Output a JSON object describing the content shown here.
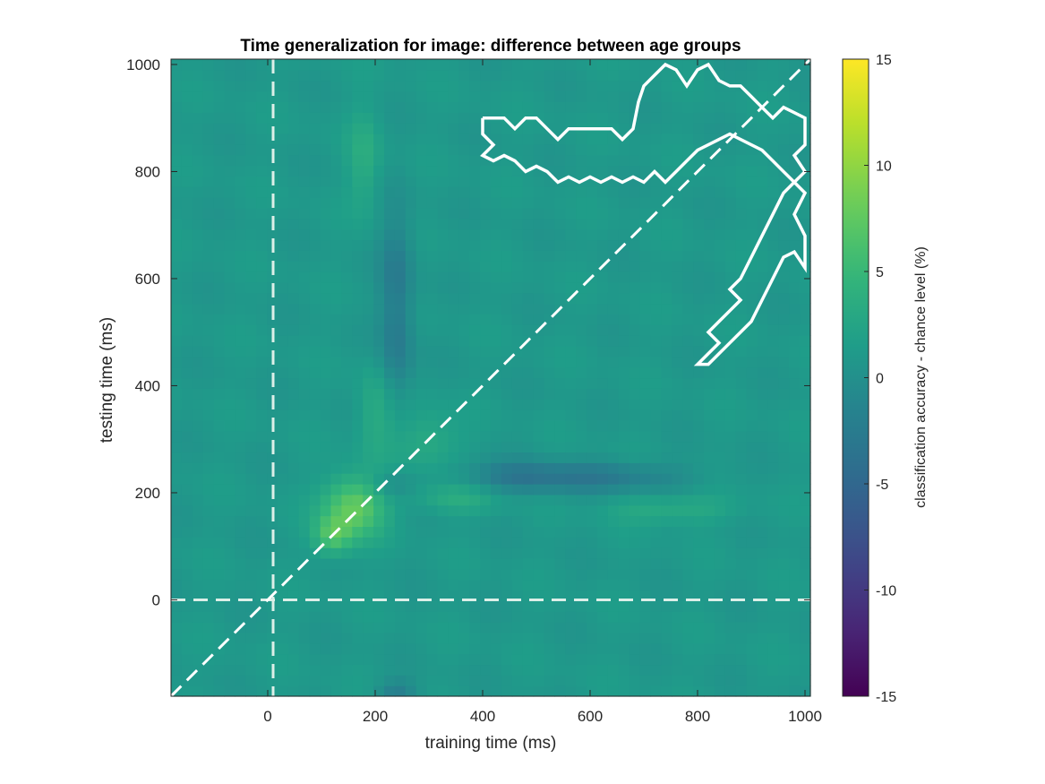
{
  "chart_data": {
    "type": "heatmap",
    "title": "Time generalization for image: difference between age groups",
    "xlabel": "training time (ms)",
    "ylabel": "testing time (ms)",
    "xlim": [
      -180,
      1010
    ],
    "ylim": [
      -180,
      1010
    ],
    "xticks": [
      0,
      200,
      400,
      600,
      800,
      1000
    ],
    "yticks": [
      0,
      200,
      400,
      600,
      800,
      1000
    ],
    "xtick_labels": [
      "0",
      "200",
      "400",
      "600",
      "800",
      "1000"
    ],
    "ytick_labels": [
      "0",
      "200",
      "400",
      "600",
      "800",
      "1000"
    ],
    "colormap": "viridis",
    "colorbar": {
      "label": "classification accuracy - chance level (%)",
      "range": [
        -15,
        15
      ],
      "ticks": [
        -15,
        -10,
        -5,
        0,
        5,
        10,
        15
      ],
      "tick_labels": [
        "-15",
        "-10",
        "-5",
        "0",
        "5",
        "10",
        "15"
      ]
    },
    "baseline_value": 1,
    "features": [
      {
        "kind": "blob",
        "x": 160,
        "y": 175,
        "sx": 40,
        "sy": 40,
        "value": 7
      },
      {
        "kind": "blob",
        "x": 120,
        "y": 120,
        "sx": 25,
        "sy": 25,
        "value": 5
      },
      {
        "kind": "blob",
        "x": 460,
        "y": 230,
        "sx": 70,
        "sy": 22,
        "value": -3
      },
      {
        "kind": "blob",
        "x": 620,
        "y": 230,
        "sx": 110,
        "sy": 20,
        "value": -3.5
      },
      {
        "kind": "blob",
        "x": 240,
        "y": 600,
        "sx": 22,
        "sy": 90,
        "value": -3.5
      },
      {
        "kind": "blob",
        "x": 240,
        "y": 450,
        "sx": 22,
        "sy": 60,
        "value": -2.5
      },
      {
        "kind": "blob",
        "x": 230,
        "y": 215,
        "sx": 30,
        "sy": 20,
        "value": -2
      },
      {
        "kind": "blob",
        "x": 180,
        "y": 820,
        "sx": 22,
        "sy": 70,
        "value": 2.5
      },
      {
        "kind": "blob",
        "x": 200,
        "y": 350,
        "sx": 25,
        "sy": 60,
        "value": 2.5
      },
      {
        "kind": "blob",
        "x": 350,
        "y": 190,
        "sx": 60,
        "sy": 20,
        "value": 2.5
      },
      {
        "kind": "blob",
        "x": 750,
        "y": 170,
        "sx": 80,
        "sy": 20,
        "value": 2.5
      },
      {
        "kind": "blob",
        "x": 300,
        "y": 300,
        "sx": 40,
        "sy": 40,
        "value": 2.5
      },
      {
        "kind": "blob",
        "x": 240,
        "y": -170,
        "sx": 25,
        "sy": 15,
        "value": -3
      }
    ],
    "reference_lines": [
      {
        "orientation": "vertical",
        "at": 10,
        "style": "dashed"
      },
      {
        "orientation": "horizontal",
        "at": 0,
        "style": "dashed"
      },
      {
        "orientation": "diagonal",
        "from": [
          -180,
          -180
        ],
        "to": [
          1010,
          1010
        ],
        "style": "dashed"
      }
    ],
    "significance_contours": [
      {
        "label": "significant cluster",
        "points": [
          [
            400,
            900
          ],
          [
            440,
            900
          ],
          [
            460,
            880
          ],
          [
            480,
            900
          ],
          [
            500,
            900
          ],
          [
            520,
            880
          ],
          [
            540,
            860
          ],
          [
            560,
            880
          ],
          [
            580,
            880
          ],
          [
            600,
            880
          ],
          [
            640,
            880
          ],
          [
            660,
            860
          ],
          [
            680,
            880
          ],
          [
            690,
            930
          ],
          [
            700,
            960
          ],
          [
            720,
            980
          ],
          [
            740,
            1000
          ],
          [
            760,
            990
          ],
          [
            780,
            960
          ],
          [
            800,
            990
          ],
          [
            820,
            1000
          ],
          [
            840,
            970
          ],
          [
            860,
            960
          ],
          [
            880,
            960
          ],
          [
            900,
            940
          ],
          [
            920,
            920
          ],
          [
            940,
            900
          ],
          [
            960,
            920
          ],
          [
            980,
            910
          ],
          [
            1000,
            900
          ],
          [
            1000,
            850
          ],
          [
            980,
            830
          ],
          [
            1000,
            800
          ],
          [
            980,
            780
          ],
          [
            1000,
            760
          ],
          [
            980,
            720
          ],
          [
            1000,
            680
          ],
          [
            1000,
            620
          ],
          [
            980,
            650
          ],
          [
            960,
            640
          ],
          [
            940,
            600
          ],
          [
            920,
            560
          ],
          [
            900,
            520
          ],
          [
            880,
            500
          ],
          [
            860,
            480
          ],
          [
            840,
            460
          ],
          [
            820,
            440
          ],
          [
            800,
            440
          ],
          [
            820,
            460
          ],
          [
            840,
            480
          ],
          [
            820,
            500
          ],
          [
            840,
            520
          ],
          [
            860,
            540
          ],
          [
            880,
            560
          ],
          [
            860,
            580
          ],
          [
            880,
            600
          ],
          [
            900,
            640
          ],
          [
            920,
            680
          ],
          [
            940,
            720
          ],
          [
            960,
            760
          ],
          [
            980,
            780
          ],
          [
            960,
            800
          ],
          [
            940,
            820
          ],
          [
            920,
            840
          ],
          [
            900,
            850
          ],
          [
            880,
            860
          ],
          [
            860,
            870
          ],
          [
            840,
            860
          ],
          [
            820,
            850
          ],
          [
            800,
            840
          ],
          [
            780,
            820
          ],
          [
            760,
            800
          ],
          [
            740,
            780
          ],
          [
            720,
            800
          ],
          [
            700,
            780
          ],
          [
            680,
            790
          ],
          [
            660,
            780
          ],
          [
            640,
            790
          ],
          [
            620,
            780
          ],
          [
            600,
            790
          ],
          [
            580,
            780
          ],
          [
            560,
            790
          ],
          [
            540,
            780
          ],
          [
            520,
            800
          ],
          [
            500,
            810
          ],
          [
            480,
            800
          ],
          [
            460,
            820
          ],
          [
            440,
            830
          ],
          [
            420,
            820
          ],
          [
            400,
            830
          ],
          [
            420,
            850
          ],
          [
            400,
            870
          ],
          [
            400,
            900
          ]
        ]
      }
    ]
  }
}
